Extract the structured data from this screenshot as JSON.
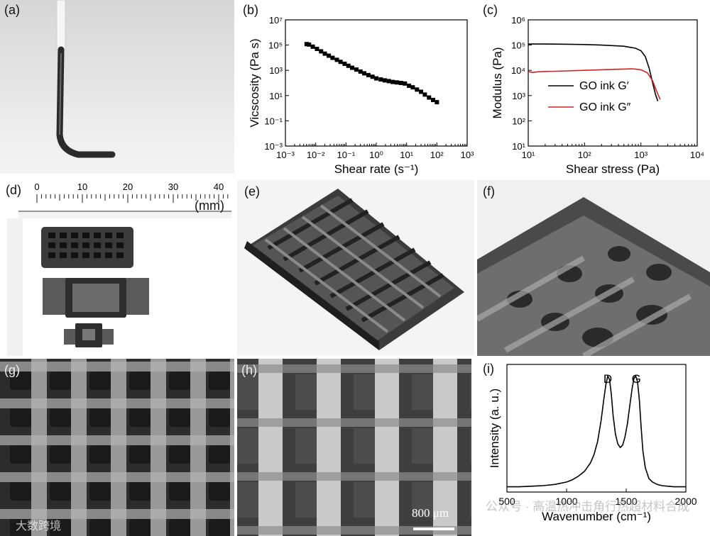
{
  "panels": {
    "a": "(a)",
    "b": "(b)",
    "c": "(c)",
    "d": "(d)",
    "e": "(e)",
    "f": "(f)",
    "g": "(g)",
    "h": "(h)",
    "i": "(i)"
  },
  "ruler": {
    "unit": "(mm)",
    "ticks": [
      "0",
      "10",
      "20",
      "30",
      "40"
    ]
  },
  "scalebar": {
    "label": "800 μm"
  },
  "watermark": {
    "left": "大数跨境",
    "right": "公众号 · 高温热冲击角行热超材料合成"
  },
  "colors": {
    "black_series": "#000000",
    "red_series": "#d42020",
    "photo_bg": "#e8e8e8"
  },
  "chart_data": [
    {
      "type": "scatter",
      "xlabel": "Shear rate (s⁻¹)",
      "ylabel": "Vicscosity (Pa s)",
      "xscale": "log",
      "yscale": "log",
      "xlim": [
        0.001,
        1000
      ],
      "ylim": [
        0.001,
        10000000
      ],
      "x_ticks": [
        "10⁻³",
        "10⁻²",
        "10⁻¹",
        "10⁰",
        "10¹",
        "10²",
        "10³"
      ],
      "y_ticks": [
        "10⁻³",
        "10⁻¹",
        "10¹",
        "10³",
        "10⁵",
        "10⁷"
      ],
      "grid": false,
      "series": [
        {
          "x": [
            0.005,
            0.006,
            0.008,
            0.011,
            0.015,
            0.02,
            0.027,
            0.036,
            0.05,
            0.066,
            0.09,
            0.12,
            0.16,
            0.22,
            0.3,
            0.4,
            0.55,
            0.75,
            1.0,
            1.4,
            1.9,
            2.6,
            3.5,
            4.8,
            6.5,
            8.8,
            12,
            16,
            22,
            30,
            40,
            55,
            75,
            100
          ],
          "y": [
            120000,
            110000,
            75000,
            50000,
            32000,
            21000,
            14500,
            9800,
            6800,
            4700,
            3300,
            2300,
            1600,
            1150,
            800,
            580,
            420,
            310,
            230,
            190,
            160,
            140,
            120,
            110,
            100,
            90,
            60,
            45,
            30,
            20,
            12,
            7,
            4.5,
            3
          ]
        }
      ]
    },
    {
      "type": "line",
      "xlabel": "Shear stress (Pa)",
      "ylabel": "Modulus (Pa)",
      "xscale": "log",
      "yscale": "log",
      "xlim": [
        10,
        10000
      ],
      "ylim": [
        10,
        1000000
      ],
      "x_ticks": [
        "10¹",
        "10²",
        "10³",
        "10⁴"
      ],
      "y_ticks": [
        "10¹",
        "10²",
        "10³",
        "10⁴",
        "10⁵",
        "10⁶"
      ],
      "grid": false,
      "legend_position": "center-left",
      "series": [
        {
          "name": "GO ink G′",
          "x": [
            10,
            20,
            50,
            100,
            200,
            500,
            800,
            1000,
            1200,
            1400,
            1600,
            1800,
            2000
          ],
          "y": [
            110000,
            110000,
            108000,
            105000,
            100000,
            90000,
            75000,
            60000,
            35000,
            12000,
            3500,
            1200,
            600
          ]
        },
        {
          "name": "GO ink G″",
          "x": [
            10,
            12,
            15,
            20,
            30,
            50,
            100,
            200,
            400,
            700,
            1000,
            1300,
            1600,
            1900,
            2200
          ],
          "y": [
            9000,
            8200,
            8800,
            9000,
            9200,
            9500,
            10000,
            10500,
            11000,
            11500,
            10500,
            8000,
            4000,
            1500,
            700
          ]
        }
      ]
    },
    {
      "type": "line",
      "xlabel": "Wavenumber (cm⁻¹)",
      "ylabel": "Intensity (a. u.)",
      "xlim": [
        500,
        2000
      ],
      "x_ticks": [
        "500",
        "1000",
        "1500",
        "2000"
      ],
      "grid": false,
      "annotations": [
        "D",
        "G"
      ],
      "series": [
        {
          "x": [
            500,
            600,
            700,
            800,
            900,
            1000,
            1050,
            1100,
            1150,
            1200,
            1230,
            1260,
            1290,
            1310,
            1330,
            1345,
            1360,
            1375,
            1390,
            1410,
            1430,
            1450,
            1470,
            1490,
            1510,
            1530,
            1550,
            1565,
            1580,
            1595,
            1610,
            1625,
            1640,
            1660,
            1690,
            1720,
            1760,
            1800,
            1850,
            1900,
            1950,
            2000
          ],
          "y": [
            0.02,
            0.02,
            0.025,
            0.03,
            0.04,
            0.06,
            0.08,
            0.11,
            0.15,
            0.22,
            0.29,
            0.4,
            0.58,
            0.74,
            0.88,
            0.95,
            0.92,
            0.8,
            0.62,
            0.46,
            0.38,
            0.35,
            0.37,
            0.44,
            0.55,
            0.7,
            0.85,
            0.93,
            0.95,
            0.9,
            0.75,
            0.52,
            0.32,
            0.18,
            0.09,
            0.06,
            0.04,
            0.03,
            0.025,
            0.02,
            0.02,
            0.02
          ]
        }
      ]
    }
  ]
}
